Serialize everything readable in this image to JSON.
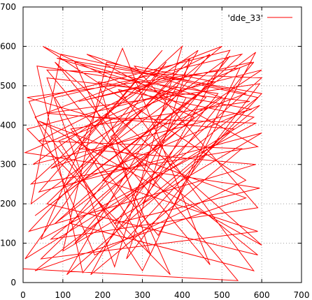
{
  "chart_data": {
    "type": "line",
    "title": "",
    "xlabel": "",
    "ylabel": "",
    "xlim": [
      0,
      700
    ],
    "ylim": [
      0,
      700
    ],
    "x_ticks": [
      "0",
      "100",
      "200",
      "300",
      "400",
      "500",
      "600",
      "700"
    ],
    "y_ticks": [
      "0",
      "100",
      "200",
      "300",
      "400",
      "500",
      "600",
      "700"
    ],
    "grid": true,
    "legend": "top-right",
    "series": [
      {
        "name": "'dde_33'",
        "color": "#ff0000",
        "points": [
          [
            0,
            35
          ],
          [
            540,
            5
          ],
          [
            80,
            560
          ],
          [
            600,
            95
          ],
          [
            40,
            410
          ],
          [
            560,
            215
          ],
          [
            30,
            30
          ],
          [
            590,
            470
          ],
          [
            95,
            580
          ],
          [
            20,
            200
          ],
          [
            520,
            575
          ],
          [
            130,
            100
          ],
          [
            600,
            520
          ],
          [
            60,
            540
          ],
          [
            470,
            45
          ],
          [
            250,
            595
          ],
          [
            45,
            110
          ],
          [
            585,
            405
          ],
          [
            180,
            420
          ],
          [
            10,
            470
          ],
          [
            545,
            545
          ],
          [
            300,
            30
          ],
          [
            90,
            360
          ],
          [
            580,
            560
          ],
          [
            150,
            25
          ],
          [
            35,
            550
          ],
          [
            490,
            480
          ],
          [
            230,
            150
          ],
          [
            595,
            240
          ],
          [
            5,
            330
          ],
          [
            390,
            500
          ],
          [
            70,
            290
          ],
          [
            560,
            480
          ],
          [
            210,
            560
          ],
          [
            100,
            80
          ],
          [
            600,
            380
          ],
          [
            40,
            230
          ],
          [
            350,
            590
          ],
          [
            140,
            340
          ],
          [
            585,
            300
          ],
          [
            15,
            130
          ],
          [
            420,
            570
          ],
          [
            260,
            60
          ],
          [
            595,
            505
          ],
          [
            60,
            430
          ],
          [
            530,
            390
          ],
          [
            110,
            20
          ],
          [
            440,
            590
          ],
          [
            25,
            300
          ],
          [
            575,
            440
          ],
          [
            190,
            510
          ],
          [
            320,
            70
          ],
          [
            80,
            470
          ],
          [
            550,
            580
          ],
          [
            200,
            260
          ],
          [
            590,
            130
          ],
          [
            45,
            60
          ],
          [
            460,
            470
          ],
          [
            130,
            560
          ],
          [
            370,
            20
          ],
          [
            10,
            390
          ],
          [
            600,
            540
          ],
          [
            270,
            320
          ],
          [
            80,
            150
          ],
          [
            500,
            470
          ],
          [
            160,
            580
          ],
          [
            590,
            345
          ],
          [
            20,
            250
          ],
          [
            400,
            600
          ],
          [
            230,
            40
          ],
          [
            60,
            520
          ],
          [
            570,
            460
          ],
          [
            120,
            390
          ],
          [
            340,
            120
          ],
          [
            585,
            585
          ],
          [
            30,
            170
          ],
          [
            480,
            510
          ],
          [
            280,
            550
          ],
          [
            590,
            190
          ],
          [
            70,
            110
          ],
          [
            430,
            420
          ],
          [
            50,
            600
          ],
          [
            560,
            260
          ],
          [
            180,
            70
          ],
          [
            15,
            460
          ],
          [
            520,
            590
          ],
          [
            300,
            200
          ],
          [
            595,
            450
          ],
          [
            100,
            240
          ],
          [
            360,
            560
          ],
          [
            5,
            60
          ],
          [
            580,
            420
          ],
          [
            240,
            490
          ],
          [
            580,
            30
          ],
          [
            120,
            150
          ],
          [
            470,
            580
          ],
          [
            40,
            360
          ],
          [
            550,
            340
          ],
          [
            170,
            20
          ],
          [
            410,
            470
          ],
          [
            85,
            570
          ],
          [
            600,
            480
          ],
          [
            260,
            110
          ],
          [
            30,
            420
          ],
          [
            500,
            600
          ],
          [
            220,
            370
          ],
          [
            590,
            70
          ],
          [
            60,
            200
          ],
          [
            380,
            520
          ],
          [
            140,
            460
          ],
          [
            575,
            560
          ]
        ]
      }
    ]
  }
}
